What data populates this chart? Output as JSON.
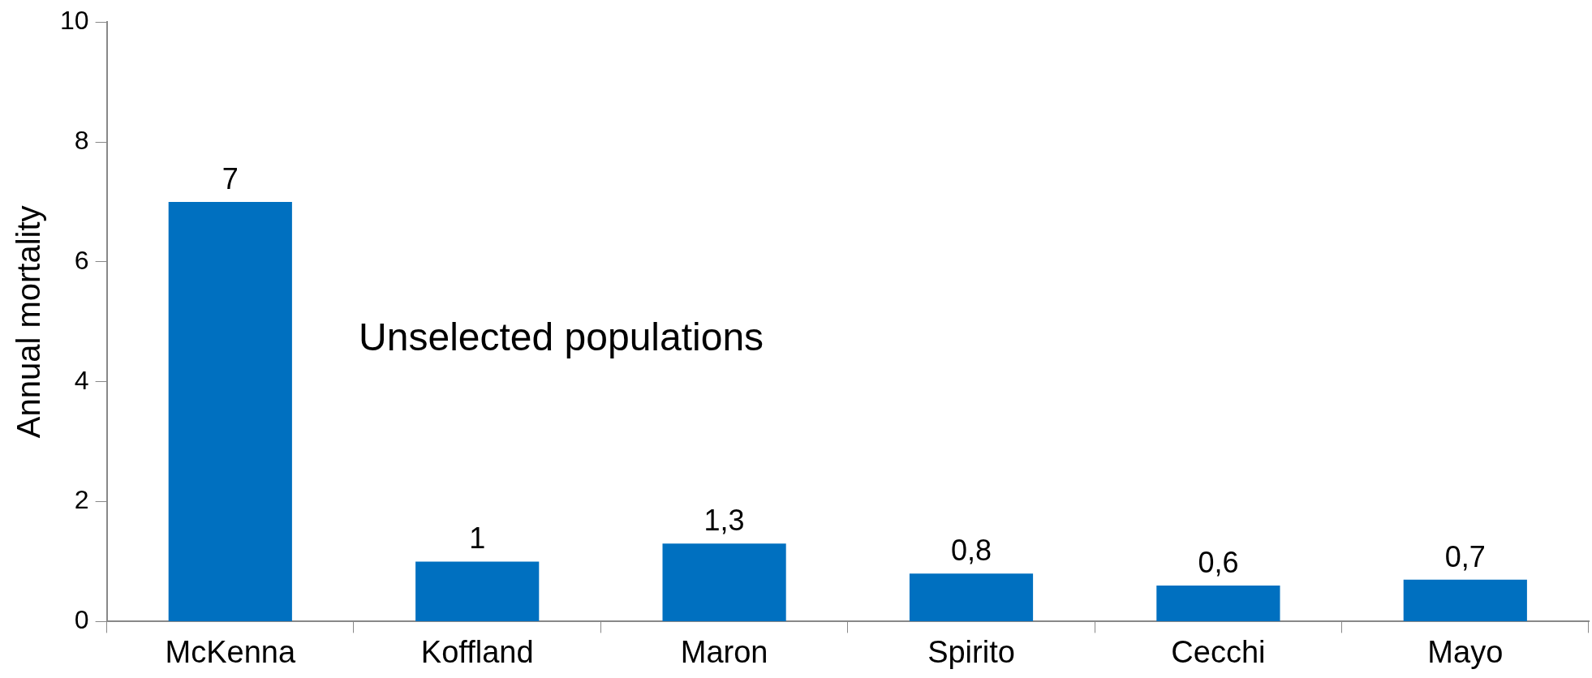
{
  "chart_data": {
    "type": "bar",
    "ylabel": "Annual mortality",
    "categories": [
      "McKenna",
      "Koffland",
      "Maron",
      "Spirito",
      "Cecchi",
      "Mayo"
    ],
    "values": [
      7,
      1,
      1.3,
      0.8,
      0.6,
      0.7
    ],
    "value_labels": [
      "7",
      "1",
      "1,3",
      "0,8",
      "0,6",
      "0,7"
    ],
    "color": "#0070c0",
    "ylim": [
      0,
      10
    ],
    "yticks": [
      0,
      2,
      4,
      6,
      8,
      10
    ],
    "grid": false,
    "legend": false,
    "annotations": [
      "Unselected populations"
    ]
  }
}
